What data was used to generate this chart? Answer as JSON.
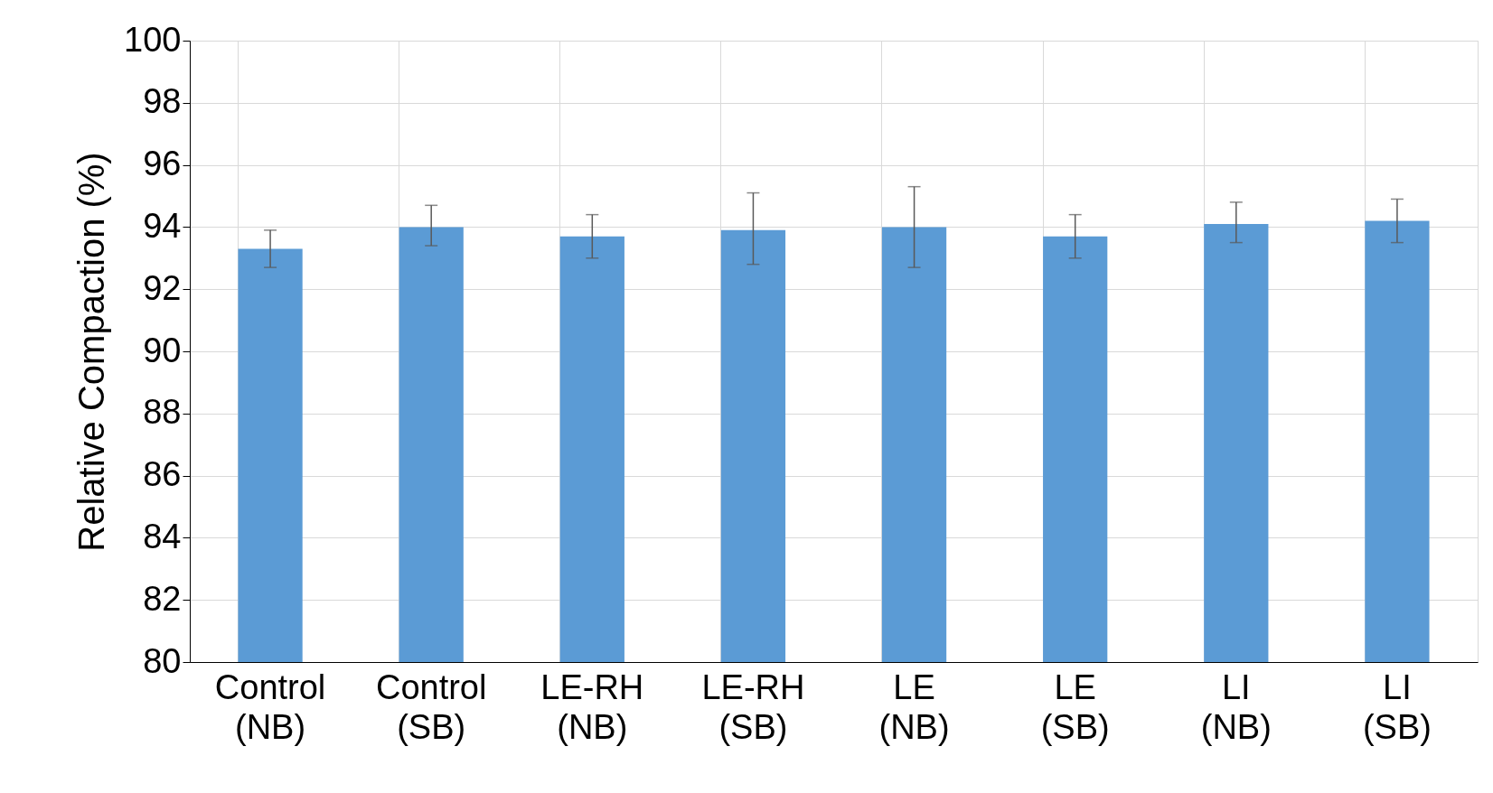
{
  "chart_data": {
    "type": "bar",
    "ylabel": "Relative Compaction (%)",
    "categories": [
      "Control (NB)",
      "Control (SB)",
      "LE-RH (NB)",
      "LE-RH (SB)",
      "LE (NB)",
      "LE (SB)",
      "LI (NB)",
      "LI (SB)"
    ],
    "values": [
      93.3,
      94.0,
      93.7,
      93.9,
      94.0,
      93.7,
      94.1,
      94.2
    ],
    "errors": [
      [
        92.7,
        93.9
      ],
      [
        93.4,
        94.7
      ],
      [
        93.0,
        94.4
      ],
      [
        92.8,
        95.1
      ],
      [
        92.7,
        95.3
      ],
      [
        93.0,
        94.4
      ],
      [
        93.5,
        94.8
      ],
      [
        93.5,
        94.9
      ]
    ],
    "color": "#5b9bd5",
    "ylim": [
      80,
      100
    ],
    "yticks": [
      80,
      82,
      84,
      86,
      88,
      90,
      92,
      94,
      96,
      98,
      100
    ],
    "grid": true
  }
}
